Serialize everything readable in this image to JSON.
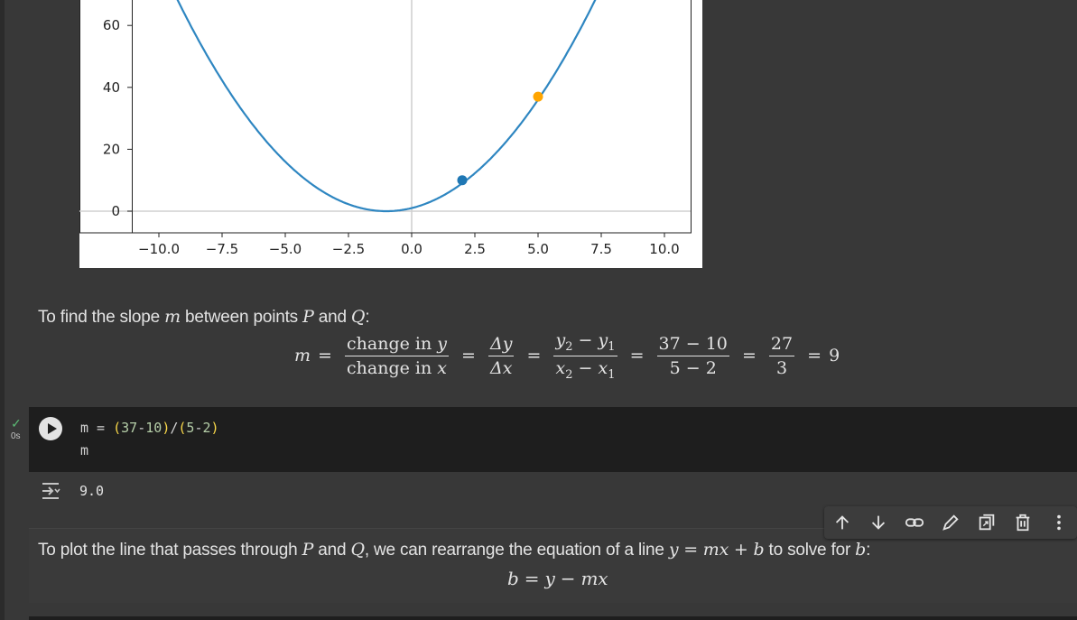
{
  "chart_data": {
    "type": "line",
    "function": "y = (x + 1)^2",
    "x_ticks": [
      "−10.0",
      "−7.5",
      "−5.0",
      "−2.5",
      "0.0",
      "2.5",
      "5.0",
      "7.5",
      "10.0"
    ],
    "y_ticks": [
      "0",
      "20",
      "40",
      "60"
    ],
    "xlim": [
      -10.6,
      10.6
    ],
    "ylim_visible": [
      -1,
      69
    ],
    "series": [
      {
        "color": "#2e86c1",
        "x": [
          -10,
          -8,
          -6,
          -4,
          -2,
          -1,
          0,
          2,
          4,
          6,
          8
        ],
        "y": [
          81,
          49,
          25,
          9,
          1,
          0,
          1,
          9,
          25,
          49,
          81
        ]
      }
    ],
    "points": [
      {
        "x": 2,
        "y": 10,
        "color": "#1f77b4"
      },
      {
        "x": 5,
        "y": 37,
        "color": "#ffa500"
      }
    ],
    "axhline_y": 0,
    "axvline_x": 0
  },
  "text1": {
    "prefix": "To find the slope ",
    "m": "m",
    "mid1": " between points ",
    "P": "P",
    "and": " and ",
    "Q": "Q",
    "suffix": ":"
  },
  "slope_eq": {
    "lhs": "m",
    "eq": "=",
    "f1_num_a": "change in ",
    "f1_num_b": "y",
    "f1_den_a": "change in ",
    "f1_den_b": "x",
    "f2_num": "Δy",
    "f2_den": "Δx",
    "f3_num_y2": "y",
    "f3_num_s2": "2",
    "f3_num_minus": " − ",
    "f3_num_y1": "y",
    "f3_num_s1": "1",
    "f3_den_x2": "x",
    "f3_den_s2": "2",
    "f3_den_minus": " − ",
    "f3_den_x1": "x",
    "f3_den_s1": "1",
    "f4_num": "37 − 10",
    "f4_den": "5 − 2",
    "f5_num": "27",
    "f5_den": "3",
    "result": "9"
  },
  "code_cell": {
    "line1_a": "m = ",
    "line1_paren1": "(",
    "line1_n1": "37",
    "line1_op1": "-",
    "line1_n2": "10",
    "line1_paren2": ")",
    "line1_op2": "/",
    "line1_paren3": "(",
    "line1_n3": "5",
    "line1_op3": "-",
    "line1_n4": "2",
    "line1_paren4": ")",
    "line2": "m",
    "exec_time": "0s",
    "output": "9.0"
  },
  "text2": {
    "prefix": "To plot the line that passes through ",
    "P": "P",
    "and": " and ",
    "Q": "Q",
    "mid": ", we can rearrange the equation of a line ",
    "eqn": "y = mx + b",
    "mid2": " to solve for ",
    "b": "b",
    "suffix": ":",
    "eq2": "b = y − mx"
  },
  "toolbar": {
    "icons": [
      "arrow-up-icon",
      "arrow-down-icon",
      "link-icon",
      "pencil-icon",
      "mirror-cell-icon",
      "delete-icon",
      "more-vert-icon"
    ]
  }
}
